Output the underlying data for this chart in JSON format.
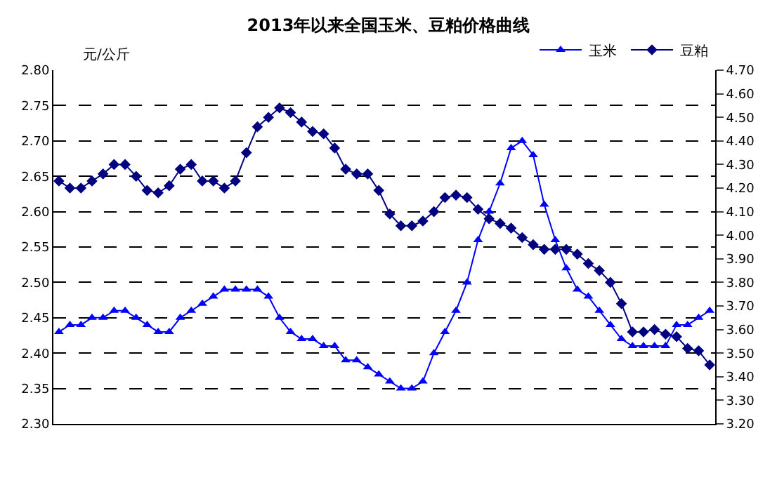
{
  "chart_data": {
    "type": "line",
    "title": "2013年以来全国玉米、豆粕价格曲线",
    "ylabel": "元/公斤",
    "categories": [
      null,
      null,
      null,
      null,
      null,
      null,
      null,
      null,
      null,
      null,
      null,
      null,
      null,
      null,
      null,
      null,
      null,
      null,
      null,
      null,
      null,
      null,
      null,
      null,
      null,
      null,
      null,
      null,
      null,
      null,
      null,
      null,
      null,
      null,
      null,
      null,
      null,
      null,
      null,
      null,
      null,
      null,
      null,
      null,
      null,
      null,
      null,
      null,
      null,
      null,
      null,
      null,
      null,
      null,
      null,
      null,
      null,
      null,
      null,
      null
    ],
    "series": [
      {
        "name": "玉米",
        "color": "#0000ff",
        "marker": "triangle",
        "values": [
          2.43,
          2.44,
          2.44,
          2.45,
          2.45,
          2.46,
          2.46,
          2.45,
          2.44,
          2.43,
          2.43,
          2.45,
          2.46,
          2.47,
          2.48,
          2.49,
          2.49,
          2.49,
          2.49,
          2.48,
          2.45,
          2.43,
          2.42,
          2.42,
          2.41,
          2.41,
          2.39,
          2.39,
          2.38,
          2.37,
          2.36,
          2.35,
          2.35,
          2.36,
          2.4,
          2.43,
          2.46,
          2.5,
          2.56,
          2.6,
          2.64,
          2.69,
          2.7,
          2.68,
          2.61,
          2.56,
          2.52,
          2.49,
          2.48,
          2.46,
          2.44,
          2.42,
          2.41,
          2.41,
          2.41,
          2.41,
          2.44,
          2.44,
          2.45,
          2.46
        ]
      },
      {
        "name": "豆粕",
        "color": "#000080",
        "marker": "diamond",
        "axis": "y2",
        "values": [
          4.23,
          4.2,
          4.2,
          4.23,
          4.26,
          4.3,
          4.3,
          4.25,
          4.19,
          4.18,
          4.21,
          4.28,
          4.3,
          4.23,
          4.23,
          4.2,
          4.23,
          4.35,
          4.46,
          4.5,
          4.54,
          4.52,
          4.48,
          4.44,
          4.43,
          4.37,
          4.28,
          4.26,
          4.26,
          4.19,
          4.09,
          4.04,
          4.04,
          4.06,
          4.1,
          4.16,
          4.17,
          4.16,
          4.11,
          4.07,
          4.05,
          4.03,
          3.99,
          3.96,
          3.94,
          3.94,
          3.94,
          3.92,
          3.88,
          3.85,
          3.8,
          3.71,
          3.59,
          3.59,
          3.6,
          3.58,
          3.57,
          3.52,
          3.51,
          3.45
        ]
      }
    ],
    "ylim": [
      2.3,
      2.8
    ],
    "yticks": [
      {
        "value": 2.3,
        "label": "2.30"
      },
      2.35,
      {
        "value": 2.4,
        "label": "2.40"
      },
      2.45,
      {
        "value": 2.5,
        "label": "2.50"
      },
      2.55,
      {
        "value": 2.6,
        "label": "2.60"
      },
      2.65,
      {
        "value": 2.7,
        "label": "2.70"
      },
      2.75,
      {
        "value": 2.8,
        "label": "2.80"
      }
    ],
    "y2lim": [
      3.2,
      4.7
    ],
    "y2ticks": [
      {
        "value": 3.2,
        "label": "3.20"
      },
      {
        "value": 3.3,
        "label": "3.30"
      },
      {
        "value": 3.4,
        "label": "3.40"
      },
      {
        "value": 3.5,
        "label": "3.50"
      },
      {
        "value": 3.6,
        "label": "3.60"
      },
      {
        "value": 3.7,
        "label": "3.70"
      },
      {
        "value": 3.8,
        "label": "3.80"
      },
      {
        "value": 3.9,
        "label": "3.90"
      },
      {
        "value": 4.0,
        "label": "4.00"
      },
      {
        "value": 4.1,
        "label": "4.10"
      },
      {
        "value": 4.2,
        "label": "4.20"
      },
      {
        "value": 4.3,
        "label": "4.30"
      },
      {
        "value": 4.4,
        "label": "4.40"
      },
      {
        "value": 4.5,
        "label": "4.50"
      },
      {
        "value": 4.6,
        "label": "4.60"
      },
      {
        "value": 4.7,
        "label": "4.70"
      }
    ],
    "grid": "y",
    "legend": "top right",
    "line_style": "solid"
  }
}
